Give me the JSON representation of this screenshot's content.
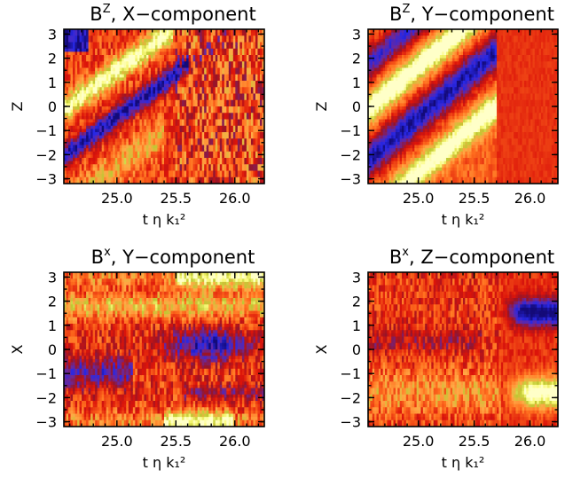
{
  "chart_data": [
    {
      "type": "heatmap",
      "title_base": "B",
      "title_sup": "Z",
      "title_rest": ", X−component",
      "x_label": "t η k₁²",
      "y_label": "Z",
      "x_ticks": [
        "25.0",
        "25.5",
        "26.0"
      ],
      "x_tick_values": [
        25.0,
        25.5,
        26.0
      ],
      "y_ticks": [
        "3",
        "2",
        "1",
        "0",
        "−1",
        "−2",
        "−3"
      ],
      "y_tick_values": [
        3,
        2,
        1,
        0,
        -1,
        -2,
        -3
      ],
      "xlim": [
        24.55,
        26.25
      ],
      "ylim": [
        -3.2,
        3.2
      ],
      "pattern": "diagonal-band-blue-lower-yellow-upper-turbulent-right",
      "colormap": "blue-red-yellow"
    },
    {
      "type": "heatmap",
      "title_base": "B",
      "title_sup": "Z",
      "title_rest": ", Y−component",
      "x_label": "t η k₁²",
      "y_label": "Z",
      "x_ticks": [
        "25.0",
        "25.5",
        "26.0"
      ],
      "x_tick_values": [
        25.0,
        25.5,
        26.0
      ],
      "y_ticks": [
        "3",
        "2",
        "1",
        "0",
        "−1",
        "−2",
        "−3"
      ],
      "y_tick_values": [
        3,
        2,
        1,
        0,
        -1,
        -2,
        -3
      ],
      "xlim": [
        24.55,
        26.25
      ],
      "ylim": [
        -3.2,
        3.2
      ],
      "pattern": "strong-diagonal-bands-then-uniform-orange",
      "colormap": "blue-red-yellow"
    },
    {
      "type": "heatmap",
      "title_base": "B",
      "title_sup": "x",
      "title_rest": ", Y−component",
      "x_label": "t η k₁²",
      "y_label": "X",
      "x_ticks": [
        "25.0",
        "25.5",
        "26.0"
      ],
      "x_tick_values": [
        25.0,
        25.5,
        26.0
      ],
      "y_ticks": [
        "3",
        "2",
        "1",
        "0",
        "−1",
        "−2",
        "−3"
      ],
      "y_tick_values": [
        3,
        2,
        1,
        0,
        -1,
        -2,
        -3
      ],
      "xlim": [
        24.55,
        26.25
      ],
      "ylim": [
        -3.2,
        3.2
      ],
      "pattern": "horizontal-bands-blue-center-yellow-edges",
      "colormap": "blue-red-yellow"
    },
    {
      "type": "heatmap",
      "title_base": "B",
      "title_sup": "x",
      "title_rest": ", Z−component",
      "x_label": "t η k₁²",
      "y_label": "X",
      "x_ticks": [
        "25.0",
        "25.5",
        "26.0"
      ],
      "x_tick_values": [
        25.0,
        25.5,
        26.0
      ],
      "y_ticks": [
        "3",
        "2",
        "1",
        "0",
        "−1",
        "−2",
        "−3"
      ],
      "y_tick_values": [
        3,
        2,
        1,
        0,
        -1,
        -2,
        -3
      ],
      "xlim": [
        24.55,
        26.25
      ],
      "ylim": [
        -3.2,
        3.2
      ],
      "pattern": "blue-upper-right-yellow-lower-right-red-left",
      "colormap": "blue-red-yellow"
    }
  ]
}
